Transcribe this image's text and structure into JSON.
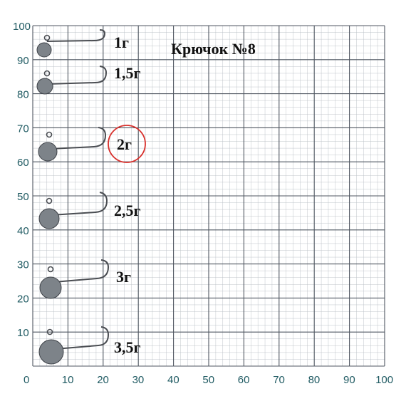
{
  "title": "Крючок №8",
  "axis": {
    "x_ticks": [
      "0",
      "10",
      "20",
      "30",
      "40",
      "50",
      "60",
      "70",
      "80",
      "90",
      "100"
    ],
    "y_ticks": [
      "10",
      "20",
      "30",
      "40",
      "50",
      "60",
      "70",
      "80",
      "90",
      "100"
    ]
  },
  "jigheads": [
    {
      "label": "1г"
    },
    {
      "label": "1,5г"
    },
    {
      "label": "2г",
      "highlighted": true
    },
    {
      "label": "2,5г"
    },
    {
      "label": "3г"
    },
    {
      "label": "3,5г"
    }
  ],
  "colors": {
    "grid_major": "#4f5660",
    "grid_minor": "#b9bec5",
    "tick_text": "#1f5a62",
    "highlight_circle": "#d8302c",
    "weight_body": "#8a9096"
  }
}
